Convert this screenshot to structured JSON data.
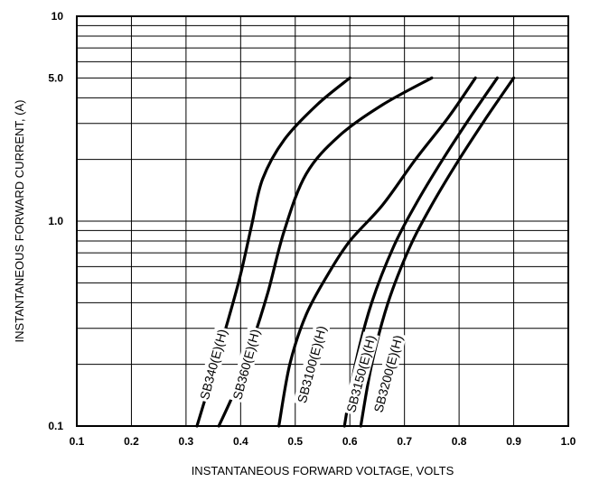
{
  "chart_data": {
    "type": "line",
    "xlabel": "INSTANTANEOUS FORWARD VOLTAGE, VOLTS",
    "ylabel": "INSTANTANEOUS  FORWARD CURRENT, (A)",
    "xlim": [
      0.1,
      1.0
    ],
    "ylim": [
      0.1,
      10
    ],
    "y_scale": "log",
    "grid": true,
    "legend": "none",
    "x_ticks": [
      "0.1",
      "0.2",
      "0.3",
      "0.4",
      "0.5",
      "0.6",
      "0.7",
      "0.8",
      "0.9",
      "1.0"
    ],
    "y_ticks": [
      {
        "value": 0.1,
        "label": "0.1"
      },
      {
        "value": 1.0,
        "label": "1.0"
      },
      {
        "value": 5.0,
        "label": "5.0"
      },
      {
        "value": 10,
        "label": "10"
      }
    ],
    "series": [
      {
        "name": "SB340(E)(H)",
        "label_at": {
          "x": 0.35,
          "y": 0.2
        },
        "x": [
          0.32,
          0.34,
          0.36,
          0.38,
          0.4,
          0.42,
          0.44,
          0.48,
          0.54,
          0.6
        ],
        "y": [
          0.1,
          0.15,
          0.23,
          0.35,
          0.55,
          0.95,
          1.6,
          2.5,
          3.7,
          5.0
        ]
      },
      {
        "name": "SB360(E)(H)",
        "label_at": {
          "x": 0.41,
          "y": 0.2
        },
        "x": [
          0.36,
          0.39,
          0.42,
          0.45,
          0.48,
          0.52,
          0.58,
          0.66,
          0.75
        ],
        "y": [
          0.1,
          0.15,
          0.25,
          0.45,
          0.9,
          1.7,
          2.6,
          3.7,
          5.0
        ]
      },
      {
        "name": "SB3100(E)(H)",
        "label_at": {
          "x": 0.53,
          "y": 0.2
        },
        "x": [
          0.47,
          0.49,
          0.52,
          0.56,
          0.6,
          0.66,
          0.72,
          0.78,
          0.83
        ],
        "y": [
          0.1,
          0.2,
          0.35,
          0.55,
          0.8,
          1.2,
          2.0,
          3.2,
          5.0
        ]
      },
      {
        "name": "SB3150(E)(H)",
        "label_at": {
          "x": 0.62,
          "y": 0.18
        },
        "x": [
          0.59,
          0.61,
          0.64,
          0.68,
          0.72,
          0.77,
          0.82,
          0.87
        ],
        "y": [
          0.1,
          0.2,
          0.4,
          0.75,
          1.2,
          2.0,
          3.2,
          5.0
        ]
      },
      {
        "name": "SB3200(E)(H)",
        "label_at": {
          "x": 0.67,
          "y": 0.18
        },
        "x": [
          0.62,
          0.64,
          0.67,
          0.71,
          0.75,
          0.8,
          0.85,
          0.9
        ],
        "y": [
          0.1,
          0.2,
          0.4,
          0.75,
          1.2,
          2.0,
          3.2,
          5.0
        ]
      }
    ]
  }
}
